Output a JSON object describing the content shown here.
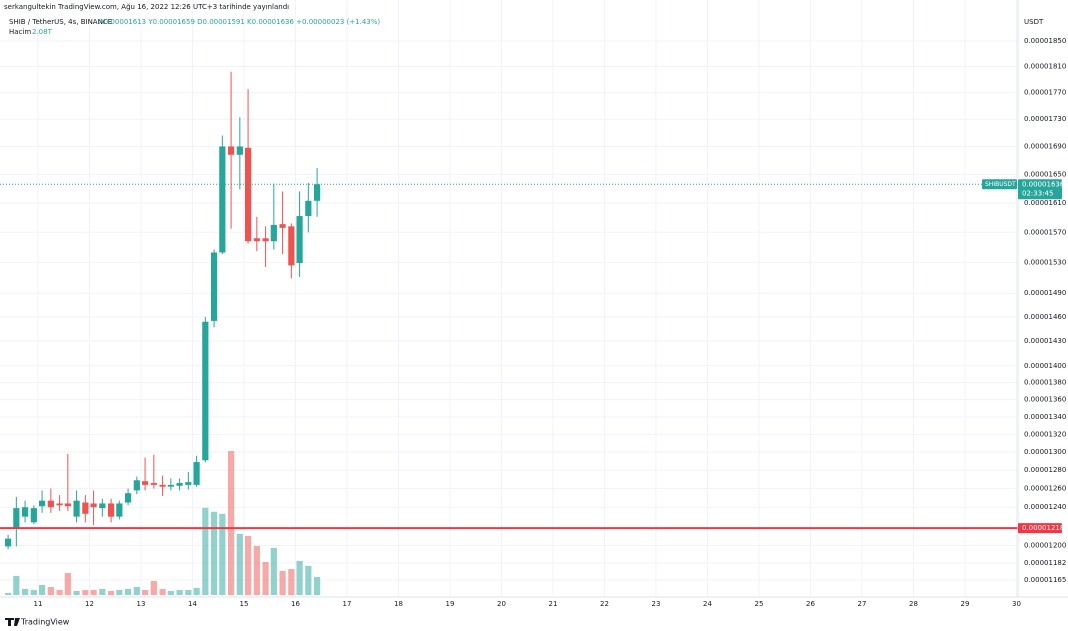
{
  "header": {
    "published": "serkangultekin TradingView.com, Ağu 16, 2022 12:26 UTC+3 tarihinde yayınlandı",
    "symbol": "SHIB / TetherUS, 4s, BINANCE",
    "ohlc_text": "A0.00001613 Y0.00001659 D0.00001591 K0.00001636 +0.00000023 (+1.43%)",
    "volume_title": "Hacim",
    "volume_label": "2.08T"
  },
  "footer": {
    "brand": "TradingView"
  },
  "chart_data": {
    "type": "candlestick",
    "currency": "USDT",
    "log_scale": true,
    "grid": true,
    "up_color": "#26a69a",
    "down_color": "#ef5350",
    "x": [
      10.42,
      10.58,
      10.75,
      10.92,
      11.08,
      11.25,
      11.42,
      11.58,
      11.75,
      11.92,
      12.08,
      12.25,
      12.42,
      12.58,
      12.75,
      12.92,
      13.08,
      13.25,
      13.42,
      13.58,
      13.75,
      13.92,
      14.08,
      14.25,
      14.42,
      14.58,
      14.75,
      14.92,
      15.08,
      15.25,
      15.42,
      15.58,
      15.75,
      15.92,
      16.08,
      16.25,
      16.42
    ],
    "open": [
      1.199e-05,
      1.217e-05,
      1.23e-05,
      1.224e-05,
      1.241e-05,
      1.247e-05,
      1.244e-05,
      1.244e-05,
      1.23e-05,
      1.245e-05,
      1.244e-05,
      1.239e-05,
      1.244e-05,
      1.23e-05,
      1.245e-05,
      1.258e-05,
      1.268e-05,
      1.266e-05,
      1.264e-05,
      1.262e-05,
      1.263e-05,
      1.264e-05,
      1.264e-05,
      1.291e-05,
      1.455e-05,
      1.543e-05,
      1.69e-05,
      1.678e-05,
      1.688e-05,
      1.562e-05,
      1.562e-05,
      1.558e-05,
      1.581e-05,
      1.578e-05,
      1.529e-05,
      1.592e-05,
      1.613e-05
    ],
    "high": [
      1.211e-05,
      1.251e-05,
      1.247e-05,
      1.242e-05,
      1.258e-05,
      1.26e-05,
      1.253e-05,
      1.298e-05,
      1.258e-05,
      1.253e-05,
      1.258e-05,
      1.249e-05,
      1.249e-05,
      1.247e-05,
      1.26e-05,
      1.273e-05,
      1.294e-05,
      1.297e-05,
      1.274e-05,
      1.271e-05,
      1.271e-05,
      1.278e-05,
      1.296e-05,
      1.46e-05,
      1.547e-05,
      1.706e-05,
      1.802e-05,
      1.733e-05,
      1.775e-05,
      1.591e-05,
      1.578e-05,
      1.637e-05,
      1.626e-05,
      1.582e-05,
      1.626e-05,
      1.638e-05,
      1.659e-05
    ],
    "low": [
      1.196e-05,
      1.199e-05,
      1.224e-05,
      1.222e-05,
      1.234e-05,
      1.234e-05,
      1.236e-05,
      1.236e-05,
      1.224e-05,
      1.224e-05,
      1.221e-05,
      1.23e-05,
      1.224e-05,
      1.227e-05,
      1.242e-05,
      1.254e-05,
      1.258e-05,
      1.26e-05,
      1.252e-05,
      1.258e-05,
      1.258e-05,
      1.259e-05,
      1.262e-05,
      1.289e-05,
      1.447e-05,
      1.541e-05,
      1.575e-05,
      1.629e-05,
      1.555e-05,
      1.545e-05,
      1.524e-05,
      1.547e-05,
      1.541e-05,
      1.509e-05,
      1.511e-05,
      1.57e-05,
      1.591e-05
    ],
    "close": [
      1.207e-05,
      1.239e-05,
      1.24e-05,
      1.239e-05,
      1.247e-05,
      1.24e-05,
      1.242e-05,
      1.241e-05,
      1.247e-05,
      1.233e-05,
      1.24e-05,
      1.244e-05,
      1.23e-05,
      1.244e-05,
      1.255e-05,
      1.269e-05,
      1.264e-05,
      1.264e-05,
      1.262e-05,
      1.264e-05,
      1.266e-05,
      1.267e-05,
      1.289e-05,
      1.454e-05,
      1.543e-05,
      1.69e-05,
      1.678e-05,
      1.69e-05,
      1.558e-05,
      1.558e-05,
      1.558e-05,
      1.58e-05,
      1.576e-05,
      1.526e-05,
      1.592e-05,
      1.613e-05,
      1.636e-05
    ],
    "volume": [
      0.23,
      2.2,
      0.7,
      0.58,
      1.16,
      0.92,
      0.58,
      2.54,
      0.46,
      0.58,
      0.58,
      0.7,
      0.46,
      0.58,
      0.7,
      0.92,
      0.58,
      1.62,
      0.7,
      0.46,
      0.58,
      0.58,
      0.81,
      10.05,
      9.6,
      9.36,
      16.6,
      7.05,
      6.8,
      5.66,
      3.81,
      5.43,
      2.77,
      3.0,
      3.93,
      3.35,
      2.08
    ],
    "xlim": [
      10.36,
      30.03
    ],
    "xticks": [
      11,
      12,
      13,
      14,
      15,
      16,
      17,
      18,
      19,
      20,
      21,
      22,
      23,
      24,
      25,
      26,
      27,
      28,
      29,
      30
    ],
    "ylim": [
      1.15e-05,
      1.9e-05
    ],
    "yticks": [
      {
        "value": 1.85e-05,
        "label": "0.00001850"
      },
      {
        "value": 1.81e-05,
        "label": "0.00001810"
      },
      {
        "value": 1.77e-05,
        "label": "0.00001770"
      },
      {
        "value": 1.73e-05,
        "label": "0.00001730"
      },
      {
        "value": 1.69e-05,
        "label": "0.00001690"
      },
      {
        "value": 1.65e-05,
        "label": "0.00001650"
      },
      {
        "value": 1.61e-05,
        "label": "0.00001610"
      },
      {
        "value": 1.57e-05,
        "label": "0.00001570"
      },
      {
        "value": 1.53e-05,
        "label": "0.00001530"
      },
      {
        "value": 1.49e-05,
        "label": "0.00001490"
      },
      {
        "value": 1.46e-05,
        "label": "0.00001460"
      },
      {
        "value": 1.43e-05,
        "label": "0.00001430"
      },
      {
        "value": 1.4e-05,
        "label": "0.00001400"
      },
      {
        "value": 1.38e-05,
        "label": "0.00001380"
      },
      {
        "value": 1.36e-05,
        "label": "0.00001360"
      },
      {
        "value": 1.34e-05,
        "label": "0.00001340"
      },
      {
        "value": 1.32e-05,
        "label": "0.00001320"
      },
      {
        "value": 1.3e-05,
        "label": "0.00001300"
      },
      {
        "value": 1.28e-05,
        "label": "0.00001280"
      },
      {
        "value": 1.26e-05,
        "label": "0.00001260"
      },
      {
        "value": 1.24e-05,
        "label": "0.00001240"
      },
      {
        "value": 1.2e-05,
        "label": "0.00001200"
      },
      {
        "value": 1.182e-05,
        "label": "0.00001182"
      },
      {
        "value": 1.165e-05,
        "label": "0.00001165"
      }
    ],
    "hline": {
      "value": 1.218e-05,
      "label": "0.00001218",
      "color": "#f23645"
    },
    "last_price": {
      "value": 1.636e-05,
      "label": "0.00001636",
      "symbol": "SHIBUSDT",
      "countdown": "02:33:45"
    }
  }
}
